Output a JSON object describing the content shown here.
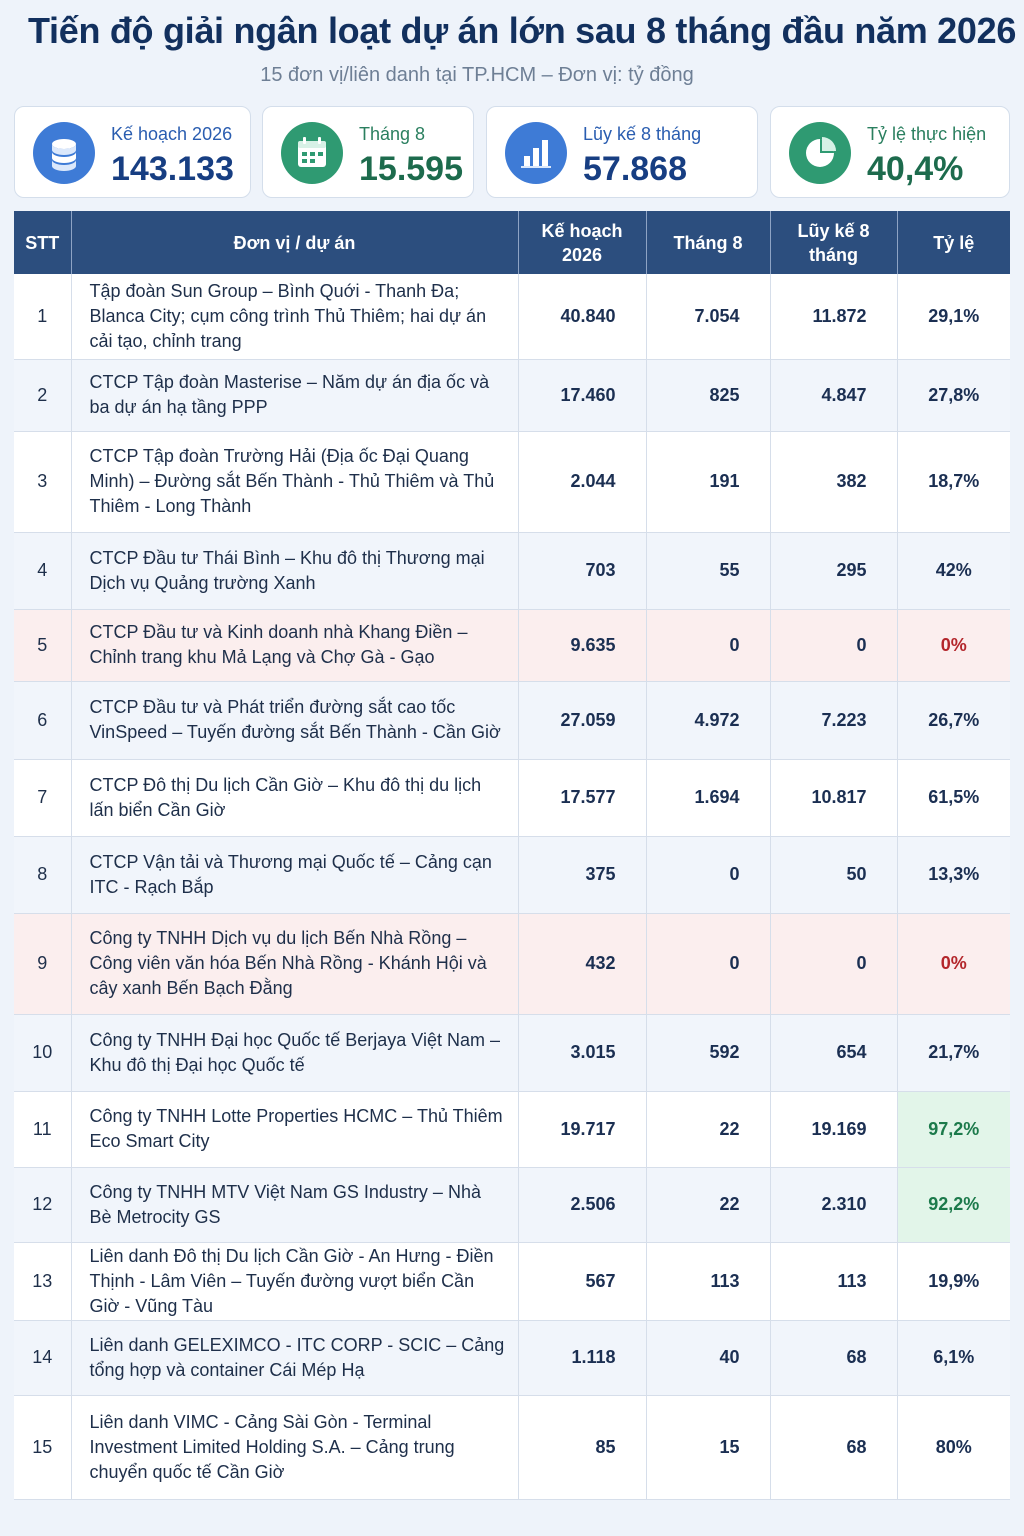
{
  "title": "Tiến độ giải ngân loạt dự án lớn sau 8 tháng đầu năm 2026",
  "subtitle": "15 đơn vị/liên danh tại TP.HCM – Đơn vị: tỷ đồng",
  "stats": [
    {
      "label": "Kế hoạch 2026",
      "value": "143.133",
      "icon": "coins-icon",
      "color": "#3e7bd6"
    },
    {
      "label": "Tháng 8",
      "value": "15.595",
      "icon": "calendar-icon",
      "color": "#2f9a72"
    },
    {
      "label": "Lũy kế 8 tháng",
      "value": "57.868",
      "icon": "bar-chart-icon",
      "color": "#3e7bd6"
    },
    {
      "label": "Tỷ lệ thực hiện",
      "value": "40,4%",
      "icon": "pie-chart-icon",
      "color": "#2f9a72"
    }
  ],
  "table": {
    "headers": [
      "STT",
      "Đơn vị / dự án",
      "Kế hoạch 2026",
      "Tháng 8",
      "Lũy kế 8 tháng",
      "Tỷ lệ"
    ],
    "rows": [
      {
        "stt": "1",
        "unit": "Tập đoàn Sun Group – Bình Quới - Thanh Đa; Blanca City; cụm công trình Thủ Thiêm; hai dự án cải tạo, chỉnh trang",
        "plan": "40.840",
        "month": "7.054",
        "cumulative": "11.872",
        "rate": "29,1%"
      },
      {
        "stt": "2",
        "unit": "CTCP Tập đoàn Masterise – Năm dự án địa ốc và ba dự án hạ tầng PPP",
        "plan": "17.460",
        "month": "825",
        "cumulative": "4.847",
        "rate": "27,8%"
      },
      {
        "stt": "3",
        "unit": "CTCP Tập đoàn Trường Hải (Địa ốc Đại Quang Minh) – Đường sắt Bến Thành - Thủ Thiêm và Thủ Thiêm - Long Thành",
        "plan": "2.044",
        "month": "191",
        "cumulative": "382",
        "rate": "18,7%"
      },
      {
        "stt": "4",
        "unit": "CTCP Đầu tư Thái Bình – Khu đô thị Thương mại Dịch vụ Quảng trường Xanh",
        "plan": "703",
        "month": "55",
        "cumulative": "295",
        "rate": "42%"
      },
      {
        "stt": "5",
        "unit": "CTCP Đầu tư và Kinh doanh nhà Khang Điền – Chỉnh trang khu Mả Lạng và Chợ Gà - Gạo",
        "plan": "9.635",
        "month": "0",
        "cumulative": "0",
        "rate": "0%"
      },
      {
        "stt": "6",
        "unit": "CTCP Đầu tư và Phát triển đường sắt cao tốc VinSpeed – Tuyến đường sắt Bến Thành - Cần Giờ",
        "plan": "27.059",
        "month": "4.972",
        "cumulative": "7.223",
        "rate": "26,7%"
      },
      {
        "stt": "7",
        "unit": "CTCP Đô thị Du lịch Cần Giờ – Khu đô thị du lịch lấn biển Cần Giờ",
        "plan": "17.577",
        "month": "1.694",
        "cumulative": "10.817",
        "rate": "61,5%"
      },
      {
        "stt": "8",
        "unit": "CTCP Vận tải và Thương mại Quốc tế – Cảng cạn ITC - Rạch Bắp",
        "plan": "375",
        "month": "0",
        "cumulative": "50",
        "rate": "13,3%"
      },
      {
        "stt": "9",
        "unit": "Công ty TNHH Dịch vụ du lịch Bến Nhà Rồng – Công viên văn hóa Bến Nhà Rồng - Khánh Hội và cây xanh Bến Bạch Đằng",
        "plan": "432",
        "month": "0",
        "cumulative": "0",
        "rate": "0%"
      },
      {
        "stt": "10",
        "unit": "Công ty TNHH Đại học Quốc tế Berjaya Việt Nam – Khu đô thị Đại học Quốc tế",
        "plan": "3.015",
        "month": "592",
        "cumulative": "654",
        "rate": "21,7%"
      },
      {
        "stt": "11",
        "unit": "Công ty TNHH Lotte Properties HCMC – Thủ Thiêm Eco Smart City",
        "plan": "19.717",
        "month": "22",
        "cumulative": "19.169",
        "rate": "97,2%"
      },
      {
        "stt": "12",
        "unit": "Công ty TNHH MTV Việt Nam GS Industry – Nhà Bè Metrocity GS",
        "plan": "2.506",
        "month": "22",
        "cumulative": "2.310",
        "rate": "92,2%"
      },
      {
        "stt": "13",
        "unit": "Liên danh Đô thị Du lịch Cần Giờ - An Hưng - Điền Thịnh - Lâm Viên – Tuyến đường vượt biển Cần Giờ - Vũng Tàu",
        "plan": "567",
        "month": "113",
        "cumulative": "113",
        "rate": "19,9%"
      },
      {
        "stt": "14",
        "unit": "Liên danh GELEXIMCO - ITC CORP - SCIC – Cảng tổng hợp và container Cái Mép Hạ",
        "plan": "1.118",
        "month": "40",
        "cumulative": "68",
        "rate": "6,1%"
      },
      {
        "stt": "15",
        "unit": "Liên danh VIMC - Cảng Sài Gòn - Terminal Investment Limited Holding S.A. – Cảng trung chuyển quốc tế Cần Giờ",
        "plan": "85",
        "month": "15",
        "cumulative": "68",
        "rate": "80%"
      }
    ]
  },
  "colors": {
    "header": "#2c4e7e",
    "zero_rate": "#b3262b",
    "high_rate": "#1c7a4b",
    "zero_row": "#fbeeee",
    "high_cell": "#e2f5e9"
  }
}
